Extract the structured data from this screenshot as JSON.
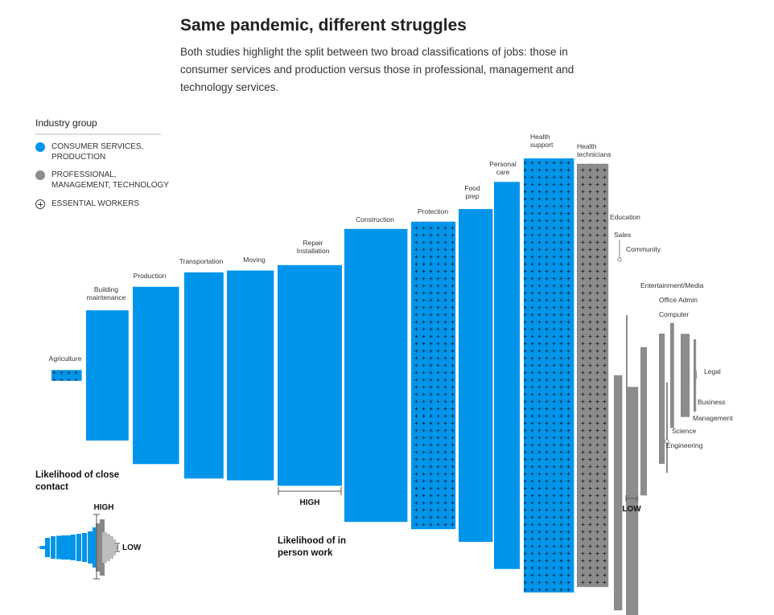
{
  "header": {
    "title": "Same pandemic, different struggles",
    "subtitle": "Both studies highlight the split between two broad classifications of jobs: those in consumer services and production versus those in professional, management and technology services."
  },
  "legend": {
    "title": "Industry group",
    "items": [
      {
        "label": "CONSUMER SERVICES, PRODUCTION",
        "color": "#0095ea"
      },
      {
        "label": "PROFESSIONAL, MANAGEMENT, TECHNOLOGY",
        "color": "#8c8c8c"
      },
      {
        "label": "ESSENTIAL WORKERS",
        "icon": "plus-circle-icon"
      }
    ]
  },
  "annotations": {
    "close_contact": "Likelihood of close contact",
    "in_person": "Likelihood of in person work",
    "high": "HIGH",
    "low": "LOW"
  },
  "chart_data": {
    "type": "bar",
    "encoding": "bar width = likelihood of in person work; bar height = likelihood of close contact",
    "colors": {
      "consumer": "#0095ea",
      "professional": "#8c8c8c"
    },
    "series": [
      {
        "name": "Agriculture",
        "group": "consumer",
        "essential": true,
        "in_person": 0.47,
        "close_contact": 0.03
      },
      {
        "name": "Building maintenance",
        "group": "consumer",
        "essential": false,
        "in_person": 0.66,
        "close_contact": 0.36
      },
      {
        "name": "Production",
        "group": "consumer",
        "essential": false,
        "in_person": 0.72,
        "close_contact": 0.49
      },
      {
        "name": "Transportation",
        "group": "consumer",
        "essential": false,
        "in_person": 0.61,
        "close_contact": 0.57
      },
      {
        "name": "Moving",
        "group": "consumer",
        "essential": false,
        "in_person": 0.73,
        "close_contact": 0.58
      },
      {
        "name": "Repair Installation",
        "group": "consumer",
        "essential": false,
        "in_person": 1.0,
        "close_contact": 0.61
      },
      {
        "name": "Construction",
        "group": "consumer",
        "essential": false,
        "in_person": 0.98,
        "close_contact": 0.81
      },
      {
        "name": "Protection",
        "group": "consumer",
        "essential": true,
        "in_person": 0.69,
        "close_contact": 0.85
      },
      {
        "name": "Food prep",
        "group": "consumer",
        "essential": false,
        "in_person": 0.53,
        "close_contact": 0.92
      },
      {
        "name": "Personal care",
        "group": "consumer",
        "essential": false,
        "in_person": 0.4,
        "close_contact": 1.07
      },
      {
        "name": "Health support",
        "group": "consumer",
        "essential": true,
        "in_person": 0.78,
        "close_contact": 1.2
      },
      {
        "name": "Health technicians",
        "group": "professional",
        "essential": true,
        "in_person": 0.49,
        "close_contact": 1.17
      },
      {
        "name": "Education",
        "group": "professional",
        "essential": false,
        "in_person": 0.13,
        "close_contact": 0.65
      },
      {
        "name": "Sales",
        "group": "professional",
        "essential": false,
        "in_person": 0.02,
        "close_contact": 0.65
      },
      {
        "name": "Community",
        "group": "professional",
        "essential": false,
        "in_person": 0.19,
        "close_contact": 0.67
      },
      {
        "name": "Entertainment/Media",
        "group": "professional",
        "essential": false,
        "in_person": 0.1,
        "close_contact": 0.41
      },
      {
        "name": "Office Admin",
        "group": "professional",
        "essential": false,
        "in_person": 0.09,
        "close_contact": 0.36
      },
      {
        "name": "Computer",
        "group": "professional",
        "essential": false,
        "in_person": 0.08,
        "close_contact": 0.3
      },
      {
        "name": "Science",
        "group": "professional",
        "essential": false,
        "in_person": 0.02,
        "close_contact": 0.25
      },
      {
        "name": "Engineering",
        "group": "professional",
        "essential": false,
        "in_person": 0.06,
        "close_contact": 0.29
      },
      {
        "name": "Legal",
        "group": "professional",
        "essential": false,
        "in_person": 0.01,
        "close_contact": 0.02
      },
      {
        "name": "Business",
        "group": "professional",
        "essential": false,
        "in_person": 0.04,
        "close_contact": 0.2
      },
      {
        "name": "Management",
        "group": "professional",
        "essential": false,
        "in_person": 0.14,
        "close_contact": 0.23
      }
    ]
  }
}
